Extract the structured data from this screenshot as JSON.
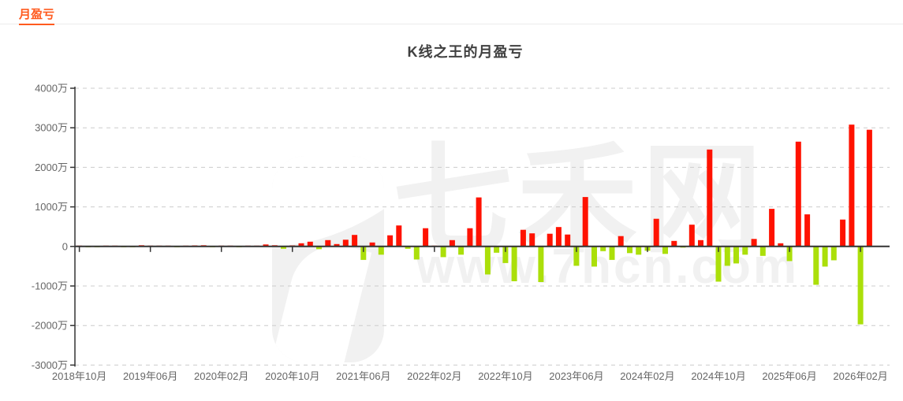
{
  "page": {
    "nav_link": "月盈亏"
  },
  "chart_data": {
    "type": "bar",
    "title": "K线之王的月盈亏",
    "unit": "万",
    "ylabel": "",
    "xlabel": "",
    "ylim": [
      -3000,
      4000
    ],
    "grid": "dashed-horizontal",
    "positive_color": "#ff1200",
    "negative_color": "#abdf0a",
    "axis_line_color": "#333333",
    "grid_line_color": "#cccccc",
    "axis_text_color": "#666666",
    "y_tick_labels": [
      "4000万",
      "3000万",
      "2000万",
      "1000万",
      "0",
      "-1000万",
      "-2000万",
      "-3000万"
    ],
    "y_tick_values": [
      4000,
      3000,
      2000,
      1000,
      0,
      -1000,
      -2000,
      -3000
    ],
    "x_tick_labels": [
      "2018年10月",
      "2019年06月",
      "2020年02月",
      "2020年10月",
      "2021年06月",
      "2022年02月",
      "2022年10月",
      "2023年06月",
      "2024年02月",
      "2024年10月",
      "2025年06月",
      "2026年02月"
    ],
    "x_tick_indices": [
      0,
      8,
      16,
      24,
      32,
      40,
      48,
      56,
      64,
      72,
      80,
      88
    ],
    "categories": [
      "2018-10",
      "2018-11",
      "2018-12",
      "2019-01",
      "2019-02",
      "2019-03",
      "2019-04",
      "2019-05",
      "2019-06",
      "2019-07",
      "2019-08",
      "2019-09",
      "2019-10",
      "2019-11",
      "2019-12",
      "2020-01",
      "2020-02",
      "2020-03",
      "2020-04",
      "2020-05",
      "2020-06",
      "2020-07",
      "2020-08",
      "2020-09",
      "2020-10",
      "2020-11",
      "2020-12",
      "2021-01",
      "2021-02",
      "2021-03",
      "2021-04",
      "2021-05",
      "2021-06",
      "2021-07",
      "2021-08",
      "2021-09",
      "2021-10",
      "2021-11",
      "2021-12",
      "2022-01",
      "2022-02",
      "2022-03",
      "2022-04",
      "2022-05",
      "2022-06",
      "2022-07",
      "2022-08",
      "2022-09",
      "2022-10",
      "2022-11",
      "2022-12",
      "2023-01",
      "2023-02",
      "2023-03",
      "2023-04",
      "2023-05",
      "2023-06",
      "2023-07",
      "2023-08",
      "2023-09",
      "2023-10",
      "2023-11",
      "2023-12",
      "2024-01",
      "2024-02",
      "2024-03",
      "2024-04",
      "2024-05",
      "2024-06",
      "2024-07",
      "2024-08",
      "2024-09",
      "2024-10",
      "2024-11",
      "2024-12",
      "2025-01",
      "2025-02",
      "2025-03",
      "2025-04",
      "2025-05",
      "2025-06",
      "2025-07",
      "2025-08",
      "2025-09",
      "2025-10",
      "2025-11",
      "2025-12",
      "2026-01",
      "2026-02",
      "2026-03"
    ],
    "values": [
      10,
      -10,
      -15,
      10,
      10,
      -15,
      -10,
      30,
      10,
      15,
      15,
      -15,
      15,
      25,
      30,
      -10,
      10,
      20,
      -10,
      10,
      20,
      50,
      30,
      -60,
      25,
      80,
      120,
      -70,
      160,
      60,
      170,
      290,
      -340,
      100,
      -210,
      280,
      530,
      -60,
      -330,
      460,
      20,
      -270,
      160,
      -210,
      460,
      1240,
      -710,
      -160,
      -420,
      -880,
      420,
      330,
      -900,
      320,
      490,
      300,
      -490,
      1250,
      -510,
      -120,
      -340,
      260,
      -170,
      -210,
      -110,
      700,
      -190,
      140,
      -30,
      550,
      160,
      2450,
      -890,
      -490,
      -430,
      -210,
      190,
      -240,
      950,
      80,
      -370,
      2650,
      810,
      -970,
      -510,
      -350,
      680,
      3080,
      -1970,
      2950
    ],
    "watermark": {
      "brand": "七禾网",
      "url_text": "www.7hcn.com"
    }
  }
}
